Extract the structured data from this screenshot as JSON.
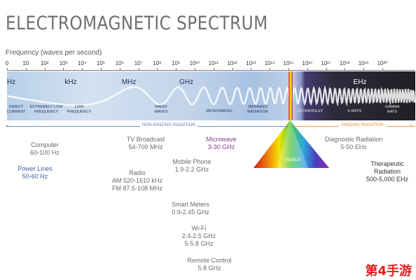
{
  "title": "ELECTROMAGNETIC SPECTRUM",
  "axis_label": "Frequency (waves per second)",
  "ticks": [
    "0",
    "10",
    "10²",
    "10³",
    "10⁴",
    "10⁵",
    "10⁶",
    "10⁷",
    "10⁸",
    "10⁹",
    "10¹⁰",
    "10¹¹",
    "10¹²",
    "10¹³",
    "10¹⁴",
    "10¹⁵",
    "10¹⁶",
    "10¹⁷",
    "10¹⁸",
    "10¹⁹",
    "10²⁰"
  ],
  "units": [
    "Hz",
    "kHz",
    "MHz",
    "GHz",
    "EHz"
  ],
  "bands": {
    "direct_current": "DIRECT\nCURRENT",
    "extremely_low": "EXTREMELY LOW\nFREQUENCY",
    "low": "LOW\nFREQUENCY",
    "radio_waves": "RADIO\nWAVES",
    "microwaves": "MICROWAVES",
    "infrared": "INFRARED\nRADIATION",
    "ultraviolet": "ULTRAVIOLET",
    "xrays": "X-RAYS",
    "gamma": "GAMMA\nRAYS"
  },
  "visible_label": "VISIBLE",
  "non_ionizing": "NON-IONIZING RADIATION",
  "ionizing": "IONIZING RADIATION",
  "examples": {
    "computer": "Computer\n60-100 Hz",
    "power_lines": "Power Lines\n50-60 Hz",
    "tv": "TV Broadcast\n54-700 MHz",
    "radio": "Radio\nAM 520-1610 kHz\nFM 87.5-108 MHz",
    "microwave": "Microwave\n3-30 GHz",
    "mobile": "Mobile Phone\n1.9-2.2 GHz",
    "smart_meters": "Smart Meters\n0.9-2.45 GHz",
    "wifi": "Wi-Fi\n2.4-2.5 GHz\n5-5.8 GHz",
    "remote": "Remote Control\n5.8 GHz",
    "diagnostic": "Diagnostic Radiation\n5-50 EHz",
    "therapeutic": "Therapeutic\nRadiation\n500-5,000 EHz"
  },
  "watermark": "第4手游"
}
